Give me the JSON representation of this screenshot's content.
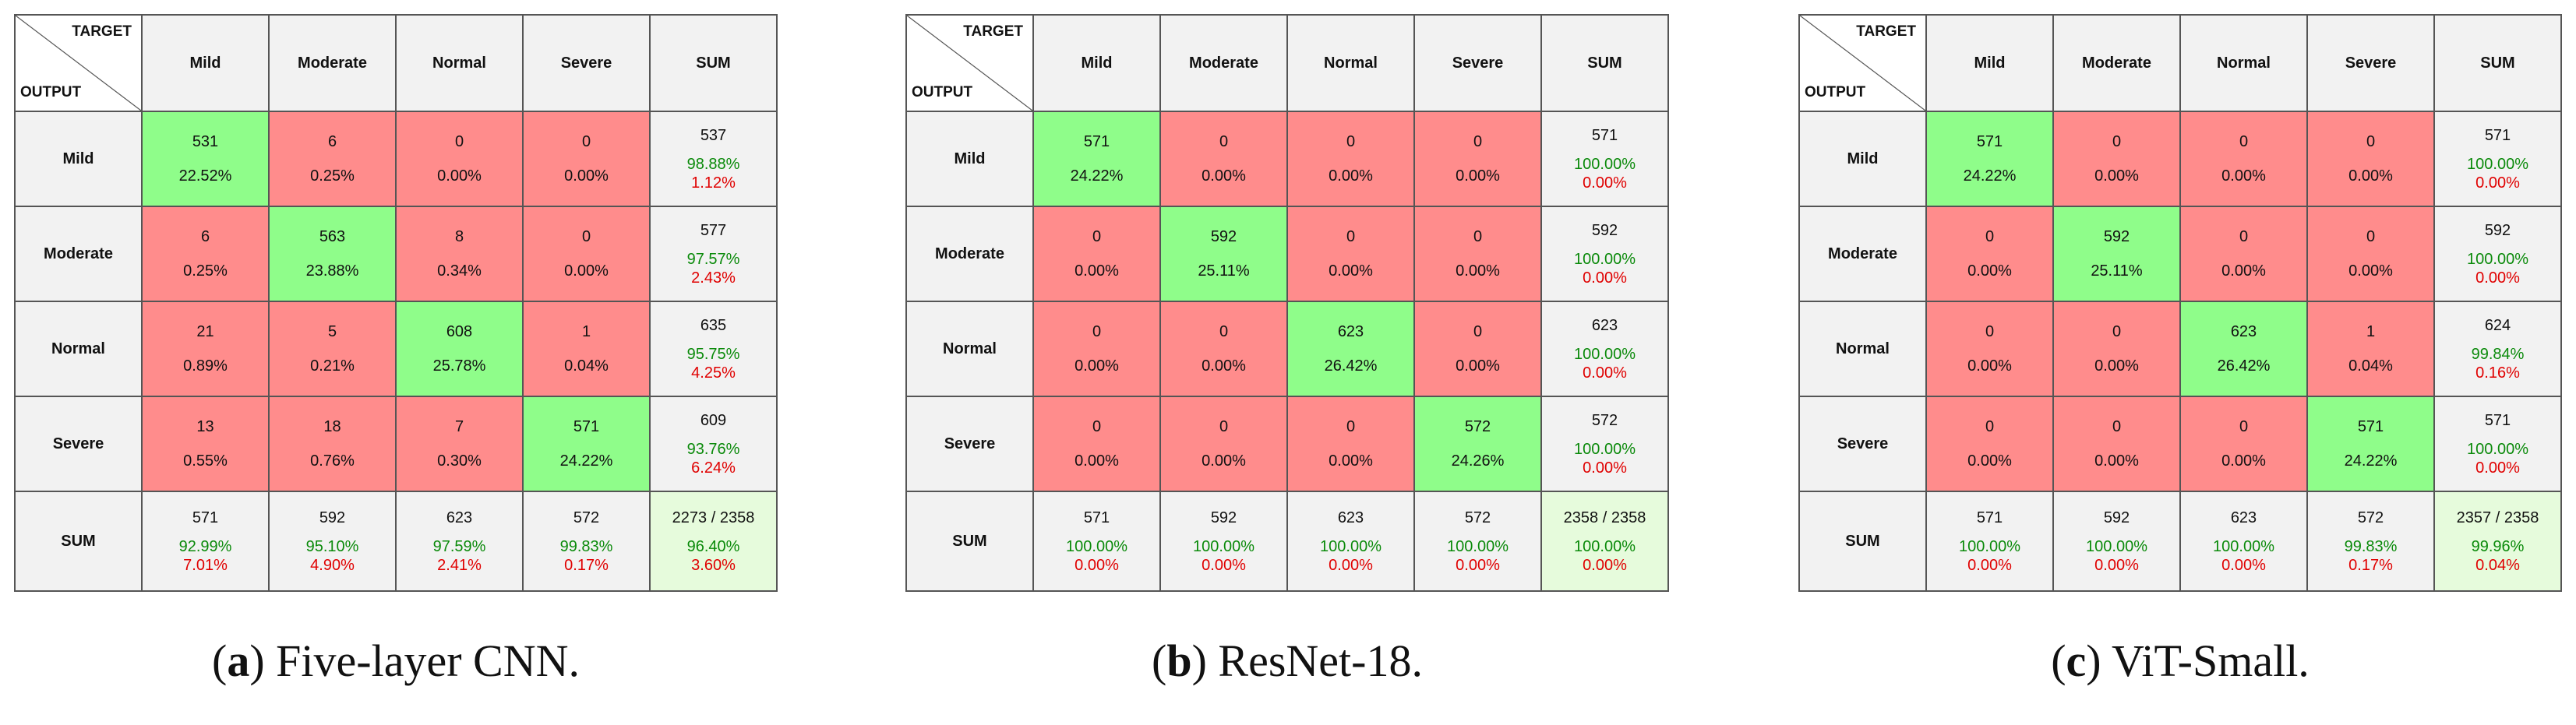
{
  "chart_data": [
    {
      "type": "table",
      "caption_letter": "a",
      "caption_text": ") Five-layer CNN.",
      "corner_target": "TARGET",
      "corner_output": "OUTPUT",
      "column_headers": [
        "Mild",
        "Moderate",
        "Normal",
        "Severe",
        "SUM"
      ],
      "rows": [
        {
          "label": "Mild",
          "cells": [
            {
              "count": "531",
              "pct": "22.52%"
            },
            {
              "count": "6",
              "pct": "0.25%"
            },
            {
              "count": "0",
              "pct": "0.00%"
            },
            {
              "count": "0",
              "pct": "0.00%"
            }
          ],
          "sum": {
            "count": "537",
            "correct": "98.88%",
            "error": "1.12%"
          }
        },
        {
          "label": "Moderate",
          "cells": [
            {
              "count": "6",
              "pct": "0.25%"
            },
            {
              "count": "563",
              "pct": "23.88%"
            },
            {
              "count": "8",
              "pct": "0.34%"
            },
            {
              "count": "0",
              "pct": "0.00%"
            }
          ],
          "sum": {
            "count": "577",
            "correct": "97.57%",
            "error": "2.43%"
          }
        },
        {
          "label": "Normal",
          "cells": [
            {
              "count": "21",
              "pct": "0.89%"
            },
            {
              "count": "5",
              "pct": "0.21%"
            },
            {
              "count": "608",
              "pct": "25.78%"
            },
            {
              "count": "1",
              "pct": "0.04%"
            }
          ],
          "sum": {
            "count": "635",
            "correct": "95.75%",
            "error": "4.25%"
          }
        },
        {
          "label": "Severe",
          "cells": [
            {
              "count": "13",
              "pct": "0.55%"
            },
            {
              "count": "18",
              "pct": "0.76%"
            },
            {
              "count": "7",
              "pct": "0.30%"
            },
            {
              "count": "571",
              "pct": "24.22%"
            }
          ],
          "sum": {
            "count": "609",
            "correct": "93.76%",
            "error": "6.24%"
          }
        }
      ],
      "sum_row": {
        "label": "SUM",
        "cells": [
          {
            "count": "571",
            "correct": "92.99%",
            "error": "7.01%"
          },
          {
            "count": "592",
            "correct": "95.10%",
            "error": "4.90%"
          },
          {
            "count": "623",
            "correct": "97.59%",
            "error": "2.41%"
          },
          {
            "count": "572",
            "correct": "99.83%",
            "error": "0.17%"
          }
        ],
        "total": {
          "count": "2273 / 2358",
          "correct": "96.40%",
          "error": "3.60%"
        }
      }
    },
    {
      "type": "table",
      "caption_letter": "b",
      "caption_text": ") ResNet-18.",
      "corner_target": "TARGET",
      "corner_output": "OUTPUT",
      "column_headers": [
        "Mild",
        "Moderate",
        "Normal",
        "Severe",
        "SUM"
      ],
      "rows": [
        {
          "label": "Mild",
          "cells": [
            {
              "count": "571",
              "pct": "24.22%"
            },
            {
              "count": "0",
              "pct": "0.00%"
            },
            {
              "count": "0",
              "pct": "0.00%"
            },
            {
              "count": "0",
              "pct": "0.00%"
            }
          ],
          "sum": {
            "count": "571",
            "correct": "100.00%",
            "error": "0.00%"
          }
        },
        {
          "label": "Moderate",
          "cells": [
            {
              "count": "0",
              "pct": "0.00%"
            },
            {
              "count": "592",
              "pct": "25.11%"
            },
            {
              "count": "0",
              "pct": "0.00%"
            },
            {
              "count": "0",
              "pct": "0.00%"
            }
          ],
          "sum": {
            "count": "592",
            "correct": "100.00%",
            "error": "0.00%"
          }
        },
        {
          "label": "Normal",
          "cells": [
            {
              "count": "0",
              "pct": "0.00%"
            },
            {
              "count": "0",
              "pct": "0.00%"
            },
            {
              "count": "623",
              "pct": "26.42%"
            },
            {
              "count": "0",
              "pct": "0.00%"
            }
          ],
          "sum": {
            "count": "623",
            "correct": "100.00%",
            "error": "0.00%"
          }
        },
        {
          "label": "Severe",
          "cells": [
            {
              "count": "0",
              "pct": "0.00%"
            },
            {
              "count": "0",
              "pct": "0.00%"
            },
            {
              "count": "0",
              "pct": "0.00%"
            },
            {
              "count": "572",
              "pct": "24.26%"
            }
          ],
          "sum": {
            "count": "572",
            "correct": "100.00%",
            "error": "0.00%"
          }
        }
      ],
      "sum_row": {
        "label": "SUM",
        "cells": [
          {
            "count": "571",
            "correct": "100.00%",
            "error": "0.00%"
          },
          {
            "count": "592",
            "correct": "100.00%",
            "error": "0.00%"
          },
          {
            "count": "623",
            "correct": "100.00%",
            "error": "0.00%"
          },
          {
            "count": "572",
            "correct": "100.00%",
            "error": "0.00%"
          }
        ],
        "total": {
          "count": "2358 / 2358",
          "correct": "100.00%",
          "error": "0.00%"
        }
      }
    },
    {
      "type": "table",
      "caption_letter": "c",
      "caption_text": ") ViT-Small.",
      "corner_target": "TARGET",
      "corner_output": "OUTPUT",
      "column_headers": [
        "Mild",
        "Moderate",
        "Normal",
        "Severe",
        "SUM"
      ],
      "rows": [
        {
          "label": "Mild",
          "cells": [
            {
              "count": "571",
              "pct": "24.22%"
            },
            {
              "count": "0",
              "pct": "0.00%"
            },
            {
              "count": "0",
              "pct": "0.00%"
            },
            {
              "count": "0",
              "pct": "0.00%"
            }
          ],
          "sum": {
            "count": "571",
            "correct": "100.00%",
            "error": "0.00%"
          }
        },
        {
          "label": "Moderate",
          "cells": [
            {
              "count": "0",
              "pct": "0.00%"
            },
            {
              "count": "592",
              "pct": "25.11%"
            },
            {
              "count": "0",
              "pct": "0.00%"
            },
            {
              "count": "0",
              "pct": "0.00%"
            }
          ],
          "sum": {
            "count": "592",
            "correct": "100.00%",
            "error": "0.00%"
          }
        },
        {
          "label": "Normal",
          "cells": [
            {
              "count": "0",
              "pct": "0.00%"
            },
            {
              "count": "0",
              "pct": "0.00%"
            },
            {
              "count": "623",
              "pct": "26.42%"
            },
            {
              "count": "1",
              "pct": "0.04%"
            }
          ],
          "sum": {
            "count": "624",
            "correct": "99.84%",
            "error": "0.16%"
          }
        },
        {
          "label": "Severe",
          "cells": [
            {
              "count": "0",
              "pct": "0.00%"
            },
            {
              "count": "0",
              "pct": "0.00%"
            },
            {
              "count": "0",
              "pct": "0.00%"
            },
            {
              "count": "571",
              "pct": "24.22%"
            }
          ],
          "sum": {
            "count": "571",
            "correct": "100.00%",
            "error": "0.00%"
          }
        }
      ],
      "sum_row": {
        "label": "SUM",
        "cells": [
          {
            "count": "571",
            "correct": "100.00%",
            "error": "0.00%"
          },
          {
            "count": "592",
            "correct": "100.00%",
            "error": "0.00%"
          },
          {
            "count": "623",
            "correct": "100.00%",
            "error": "0.00%"
          },
          {
            "count": "572",
            "correct": "99.83%",
            "error": "0.17%"
          }
        ],
        "total": {
          "count": "2357 / 2358",
          "correct": "99.96%",
          "error": "0.04%"
        }
      }
    }
  ]
}
